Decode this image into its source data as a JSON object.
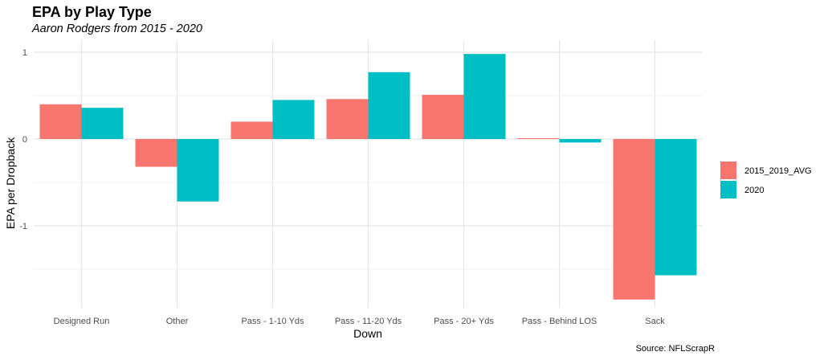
{
  "chart_data": {
    "type": "bar",
    "title": "EPA by Play Type",
    "subtitle": "Aaron Rodgers from 2015 - 2020",
    "xlabel": "Down",
    "ylabel": "EPA per Dropback",
    "caption": "Source: NFLScrapR",
    "categories": [
      "Designed Run",
      "Other",
      "Pass - 1-10 Yds",
      "Pass - 11-20 Yds",
      "Pass - 20+ Yds",
      "Pass - Behind LOS",
      "Sack"
    ],
    "series": [
      {
        "name": "2015_2019_AVG",
        "color": "#F8766D",
        "values": [
          0.4,
          -0.32,
          0.2,
          0.46,
          0.51,
          0.01,
          -1.85
        ]
      },
      {
        "name": "2020",
        "color": "#00BFC4",
        "values": [
          0.36,
          -0.72,
          0.45,
          0.77,
          0.98,
          -0.04,
          -1.57
        ]
      }
    ],
    "y_ticks": [
      1,
      0,
      -1
    ],
    "ylim": [
      -1.92,
      1.1
    ],
    "grid": true,
    "legend": "right"
  }
}
